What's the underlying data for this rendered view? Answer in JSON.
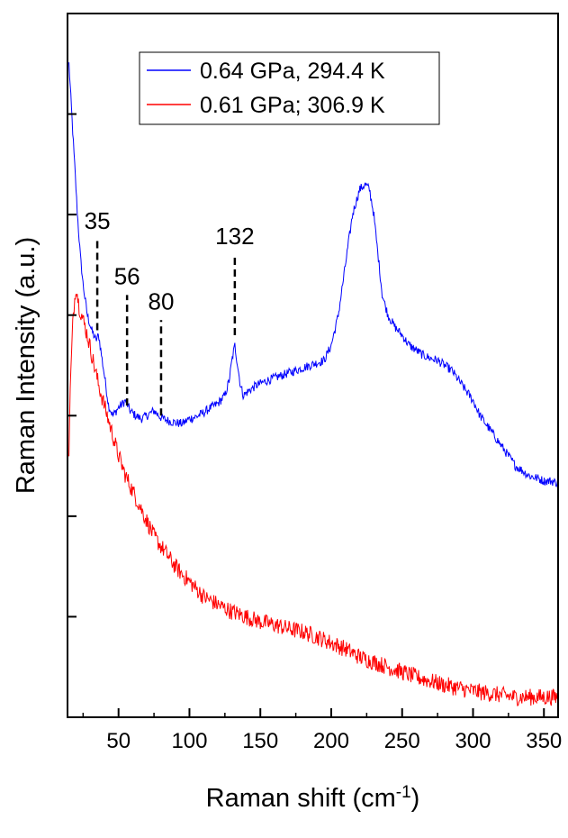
{
  "chart_data": {
    "type": "line",
    "title": "",
    "xlabel": "Raman shift (cm",
    "xlabel_superscript": "-1",
    "xlabel_close": ")",
    "ylabel": "Raman Intensity (a.u.)",
    "xlim": [
      14,
      360
    ],
    "ylim": [
      0,
      7
    ],
    "y_ticklabels_shown": false,
    "x_ticks": [
      50,
      100,
      150,
      200,
      250,
      300,
      350
    ],
    "x_ticklabels": [
      "50",
      "100",
      "150",
      "200",
      "250",
      "300",
      "350"
    ],
    "y_ticks": [
      1,
      2,
      3,
      4,
      5,
      6
    ],
    "grid": false,
    "legend_placement": "top-center",
    "series": [
      {
        "name": "0.64 GPa, 294.4 K",
        "color": "#0000ff",
        "x": [
          15,
          17,
          19,
          21,
          23,
          25,
          28,
          31,
          34,
          36,
          38,
          40,
          43,
          46,
          50,
          55,
          58,
          62,
          66,
          70,
          75,
          80,
          85,
          90,
          95,
          100,
          105,
          110,
          115,
          120,
          125,
          128,
          130,
          132,
          134,
          136,
          138,
          142,
          147,
          155,
          165,
          175,
          185,
          195,
          200,
          205,
          210,
          215,
          220,
          224,
          227,
          230,
          233,
          236,
          240,
          245,
          250,
          255,
          260,
          265,
          270,
          275,
          280,
          285,
          290,
          295,
          300,
          305,
          310,
          315,
          320,
          325,
          330,
          335,
          340,
          345,
          350,
          355,
          360
        ],
        "y": [
          6.5,
          6.0,
          5.5,
          5.0,
          4.6,
          4.3,
          4.0,
          3.85,
          3.75,
          3.8,
          3.6,
          3.4,
          3.1,
          3.0,
          3.08,
          3.15,
          3.05,
          3.0,
          2.97,
          3.0,
          3.05,
          2.98,
          2.95,
          2.93,
          2.92,
          2.97,
          2.99,
          3.03,
          3.08,
          3.12,
          3.2,
          3.35,
          3.55,
          3.7,
          3.5,
          3.3,
          3.2,
          3.25,
          3.3,
          3.35,
          3.4,
          3.45,
          3.5,
          3.55,
          3.7,
          4.0,
          4.5,
          5.0,
          5.25,
          5.3,
          5.25,
          5.0,
          4.6,
          4.2,
          4.0,
          3.88,
          3.8,
          3.7,
          3.65,
          3.6,
          3.57,
          3.55,
          3.5,
          3.45,
          3.35,
          3.25,
          3.15,
          3.0,
          2.9,
          2.8,
          2.7,
          2.6,
          2.5,
          2.45,
          2.4,
          2.38,
          2.35,
          2.35,
          2.33
        ]
      },
      {
        "name": "0.61 GPa; 306.9 K",
        "color": "#ff0000",
        "x": [
          15,
          16,
          18,
          20,
          22,
          25,
          28,
          32,
          36,
          40,
          45,
          50,
          55,
          60,
          65,
          70,
          75,
          80,
          85,
          90,
          95,
          100,
          110,
          120,
          130,
          140,
          150,
          160,
          170,
          180,
          190,
          200,
          210,
          220,
          230,
          240,
          250,
          260,
          270,
          280,
          290,
          300,
          310,
          320,
          330,
          340,
          350,
          360
        ],
        "y": [
          2.65,
          3.3,
          4.0,
          4.3,
          4.1,
          3.95,
          3.8,
          3.55,
          3.3,
          3.1,
          2.85,
          2.6,
          2.4,
          2.25,
          2.1,
          1.95,
          1.8,
          1.7,
          1.6,
          1.5,
          1.42,
          1.35,
          1.2,
          1.12,
          1.05,
          1.0,
          0.95,
          0.92,
          0.88,
          0.85,
          0.8,
          0.74,
          0.68,
          0.6,
          0.55,
          0.5,
          0.45,
          0.4,
          0.36,
          0.32,
          0.29,
          0.26,
          0.24,
          0.22,
          0.2,
          0.2,
          0.2,
          0.2
        ]
      }
    ],
    "annotations": [
      {
        "label": "35",
        "x": 35,
        "line_y": [
          3.85,
          4.75
        ]
      },
      {
        "label": "56",
        "x": 56,
        "line_y": [
          3.1,
          4.2
        ]
      },
      {
        "label": "80",
        "x": 80,
        "line_y": [
          3.0,
          3.95
        ]
      },
      {
        "label": "132",
        "x": 132,
        "line_y": [
          3.8,
          4.6
        ]
      }
    ]
  }
}
